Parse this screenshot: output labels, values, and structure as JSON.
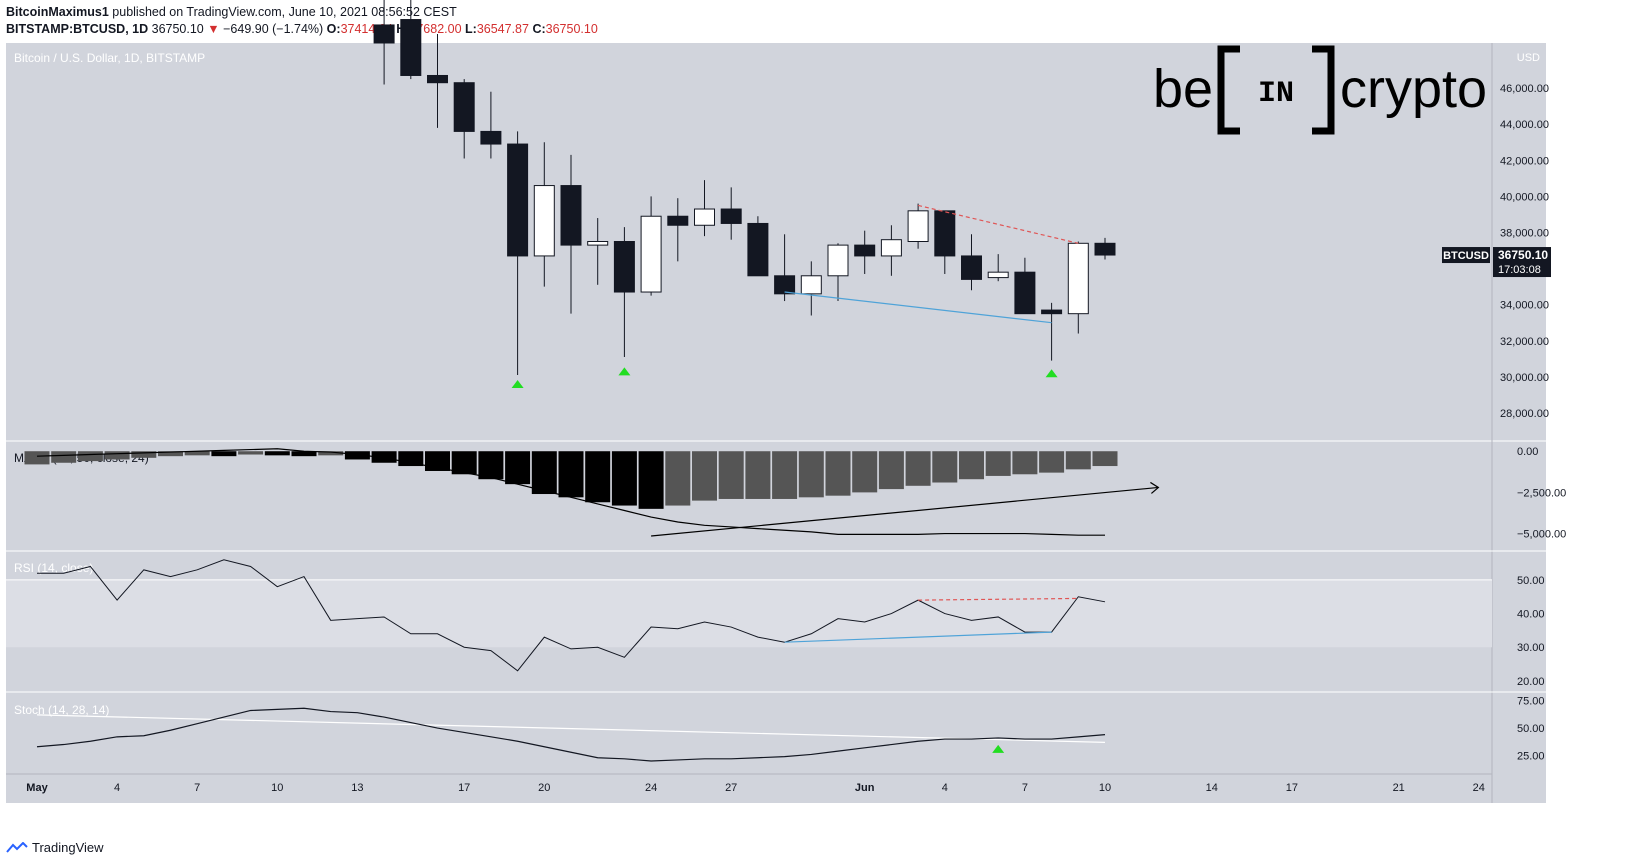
{
  "header": {
    "author": "BitcoinMaximus1",
    "published": "published on TradingView.com, June 10, 2021 08:56:52 CEST",
    "symbol": "BITSTAMP:BTCUSD, 1D",
    "last": "36750.10",
    "change": "−649.90 (−1.74%)",
    "o_label": "O:",
    "o": "37414.64",
    "h_label": "H:",
    "h": "37682.00",
    "l_label": "L:",
    "l": "36547.87",
    "c_label": "C:",
    "c": "36750.10"
  },
  "footer": {
    "brand": "TradingView"
  },
  "logo": {
    "text_left": "be",
    "text_mid": "IN",
    "text_right": "crypto"
  },
  "price_tag": {
    "symbol": "BTCUSD",
    "price": "36750.10",
    "countdown": "17:03:08"
  },
  "colors": {
    "bg": "#d1d4dc",
    "bear": "#131722",
    "bull": "#ffffff",
    "blue": "#4fa3d8",
    "red": "#e05555",
    "green": "#22dd22",
    "macd_hist_dark": "#000000",
    "macd_hist_gray": "#555555"
  },
  "chart_data": [
    {
      "type": "candlestick",
      "title": "Bitcoin / U.S. Dollar, 1D, BITSTAMP",
      "currency": "USD",
      "yticks": [
        28000,
        30000,
        32000,
        34000,
        36000,
        38000,
        40000,
        42000,
        44000,
        46000
      ],
      "ylim": [
        26500,
        48500
      ],
      "xticks": [
        {
          "label": "May",
          "i": 0
        },
        {
          "label": "4",
          "i": 3
        },
        {
          "label": "7",
          "i": 6
        },
        {
          "label": "10",
          "i": 9
        },
        {
          "label": "13",
          "i": 12
        },
        {
          "label": "17",
          "i": 16
        },
        {
          "label": "20",
          "i": 19
        },
        {
          "label": "24",
          "i": 23
        },
        {
          "label": "27",
          "i": 26
        },
        {
          "label": "Jun",
          "i": 31
        },
        {
          "label": "4",
          "i": 34
        },
        {
          "label": "7",
          "i": 37
        },
        {
          "label": "10",
          "i": 40
        },
        {
          "label": "14",
          "i": 44
        },
        {
          "label": "17",
          "i": 47
        },
        {
          "label": "21",
          "i": 51
        },
        {
          "label": "24",
          "i": 54
        }
      ],
      "candles": [
        {
          "i": 13,
          "o": 49500,
          "h": 51000,
          "l": 46200,
          "c": 48500
        },
        {
          "i": 14,
          "o": 49800,
          "h": 52000,
          "l": 46500,
          "c": 46700
        },
        {
          "i": 15,
          "o": 46700,
          "h": 49000,
          "l": 43800,
          "c": 46300
        },
        {
          "i": 16,
          "o": 46300,
          "h": 46500,
          "l": 42100,
          "c": 43600
        },
        {
          "i": 17,
          "o": 43600,
          "h": 45800,
          "l": 42100,
          "c": 42900
        },
        {
          "i": 18,
          "o": 42900,
          "h": 43600,
          "l": 30100,
          "c": 36700
        },
        {
          "i": 19,
          "o": 36700,
          "h": 43000,
          "l": 35000,
          "c": 40600
        },
        {
          "i": 20,
          "o": 40600,
          "h": 42300,
          "l": 33500,
          "c": 37300
        },
        {
          "i": 21,
          "o": 37300,
          "h": 38800,
          "l": 35100,
          "c": 37500
        },
        {
          "i": 22,
          "o": 37500,
          "h": 38300,
          "l": 31100,
          "c": 34700
        },
        {
          "i": 23,
          "o": 34700,
          "h": 40000,
          "l": 34500,
          "c": 38900
        },
        {
          "i": 24,
          "o": 38900,
          "h": 39900,
          "l": 36400,
          "c": 38400
        },
        {
          "i": 25,
          "o": 38400,
          "h": 40900,
          "l": 37800,
          "c": 39300
        },
        {
          "i": 26,
          "o": 39300,
          "h": 40500,
          "l": 37600,
          "c": 38500
        },
        {
          "i": 27,
          "o": 38500,
          "h": 38900,
          "l": 35800,
          "c": 35600
        },
        {
          "i": 28,
          "o": 35600,
          "h": 37900,
          "l": 34200,
          "c": 34600
        },
        {
          "i": 29,
          "o": 34600,
          "h": 36400,
          "l": 33400,
          "c": 35600
        },
        {
          "i": 30,
          "o": 35600,
          "h": 37400,
          "l": 34200,
          "c": 37300
        },
        {
          "i": 31,
          "o": 37300,
          "h": 38100,
          "l": 35700,
          "c": 36700
        },
        {
          "i": 32,
          "o": 36700,
          "h": 38400,
          "l": 35600,
          "c": 37600
        },
        {
          "i": 33,
          "o": 37500,
          "h": 39600,
          "l": 37100,
          "c": 39200
        },
        {
          "i": 34,
          "o": 39200,
          "h": 39200,
          "l": 35700,
          "c": 36700
        },
        {
          "i": 35,
          "o": 36700,
          "h": 37900,
          "l": 34800,
          "c": 35400
        },
        {
          "i": 36,
          "o": 35500,
          "h": 36800,
          "l": 35300,
          "c": 35800
        },
        {
          "i": 37,
          "o": 35800,
          "h": 36600,
          "l": 33500,
          "c": 33500
        },
        {
          "i": 38,
          "o": 33700,
          "h": 34100,
          "l": 30900,
          "c": 33500
        },
        {
          "i": 39,
          "o": 33500,
          "h": 37500,
          "l": 32400,
          "c": 37400
        },
        {
          "i": 40,
          "o": 37400,
          "h": 37700,
          "l": 36500,
          "c": 36750
        }
      ],
      "markers": [
        {
          "i": 18,
          "price": 29600
        },
        {
          "i": 22,
          "price": 30300
        },
        {
          "i": 38,
          "price": 30200
        }
      ],
      "support_line": [
        {
          "i": 28,
          "price": 34700
        },
        {
          "i": 38,
          "price": 33000
        }
      ],
      "resistance_line": [
        {
          "i": 33,
          "price": 39500
        },
        {
          "i": 39,
          "price": 37400
        }
      ]
    },
    {
      "type": "bar",
      "title": "MACD (21, 50, close, 24)",
      "yticks": [
        0,
        -2500,
        -5000
      ],
      "ylim": [
        -6000,
        500
      ],
      "histogram": [
        -800,
        -700,
        -600,
        -500,
        -400,
        -300,
        -250,
        -300,
        -200,
        -250,
        -300,
        -250,
        -500,
        -700,
        -900,
        -1200,
        -1400,
        -1700,
        -2000,
        -2600,
        -2800,
        -3100,
        -3300,
        -3500,
        -3300,
        -3000,
        -2900,
        -2900,
        -2900,
        -2800,
        -2700,
        -2500,
        -2300,
        -2100,
        -1900,
        -1700,
        -1500,
        -1400,
        -1300,
        -1100,
        -900
      ],
      "signal_line": [
        -300,
        -250,
        -200,
        -150,
        -100,
        -50,
        0,
        50,
        100,
        150,
        0,
        -50,
        -200,
        -400,
        -700,
        -1000,
        -1300,
        -1600,
        -2000,
        -2400,
        -2800,
        -3200,
        -3600,
        -4000,
        -4300,
        -4500,
        -4600,
        -4700,
        -4800,
        -4900,
        -5050,
        -5050,
        -5050,
        -5050,
        -5000,
        -5000,
        -5000,
        -5000,
        -5050,
        -5100,
        -5100
      ],
      "trendline": [
        {
          "i": 23,
          "v": -5150
        },
        {
          "i": 42,
          "v": -2200
        }
      ]
    },
    {
      "type": "line",
      "title": "RSI (14, close)",
      "yticks": [
        20,
        30,
        40,
        50
      ],
      "ylim": [
        17,
        58
      ],
      "band": [
        30,
        50
      ],
      "values": [
        52,
        52,
        54,
        44,
        53,
        51,
        53,
        56,
        54,
        48,
        51,
        38,
        38.5,
        39,
        34,
        34,
        30,
        29,
        23,
        33,
        29.5,
        30,
        27,
        36,
        35.5,
        37.5,
        36,
        33,
        31.5,
        34,
        38.5,
        37.5,
        40,
        44,
        40,
        38,
        39,
        34.5,
        34.5,
        45,
        43.5
      ],
      "support_line": [
        {
          "i": 28,
          "v": 31.5
        },
        {
          "i": 38,
          "v": 34.5
        }
      ],
      "resistance_line": [
        {
          "i": 33,
          "v": 44
        },
        {
          "i": 39,
          "v": 44.5
        }
      ]
    },
    {
      "type": "line",
      "title": "Stoch (14, 28, 14)",
      "yticks": [
        25,
        50,
        75
      ],
      "ylim": [
        10,
        81
      ],
      "k": [
        33,
        35,
        38,
        42,
        43,
        48,
        54,
        60,
        66,
        67,
        68,
        65,
        64,
        60,
        55,
        50,
        46,
        42,
        38,
        33,
        28,
        23,
        22,
        20,
        21,
        22,
        22,
        23,
        24,
        26,
        29,
        32,
        35,
        38,
        40,
        40,
        41,
        40,
        40,
        42,
        44
      ],
      "d": [
        {
          "i": 0,
          "v": 62
        },
        {
          "i": 40,
          "v": 37
        }
      ],
      "markers": [
        {
          "i": 36,
          "v": 31
        }
      ]
    }
  ]
}
